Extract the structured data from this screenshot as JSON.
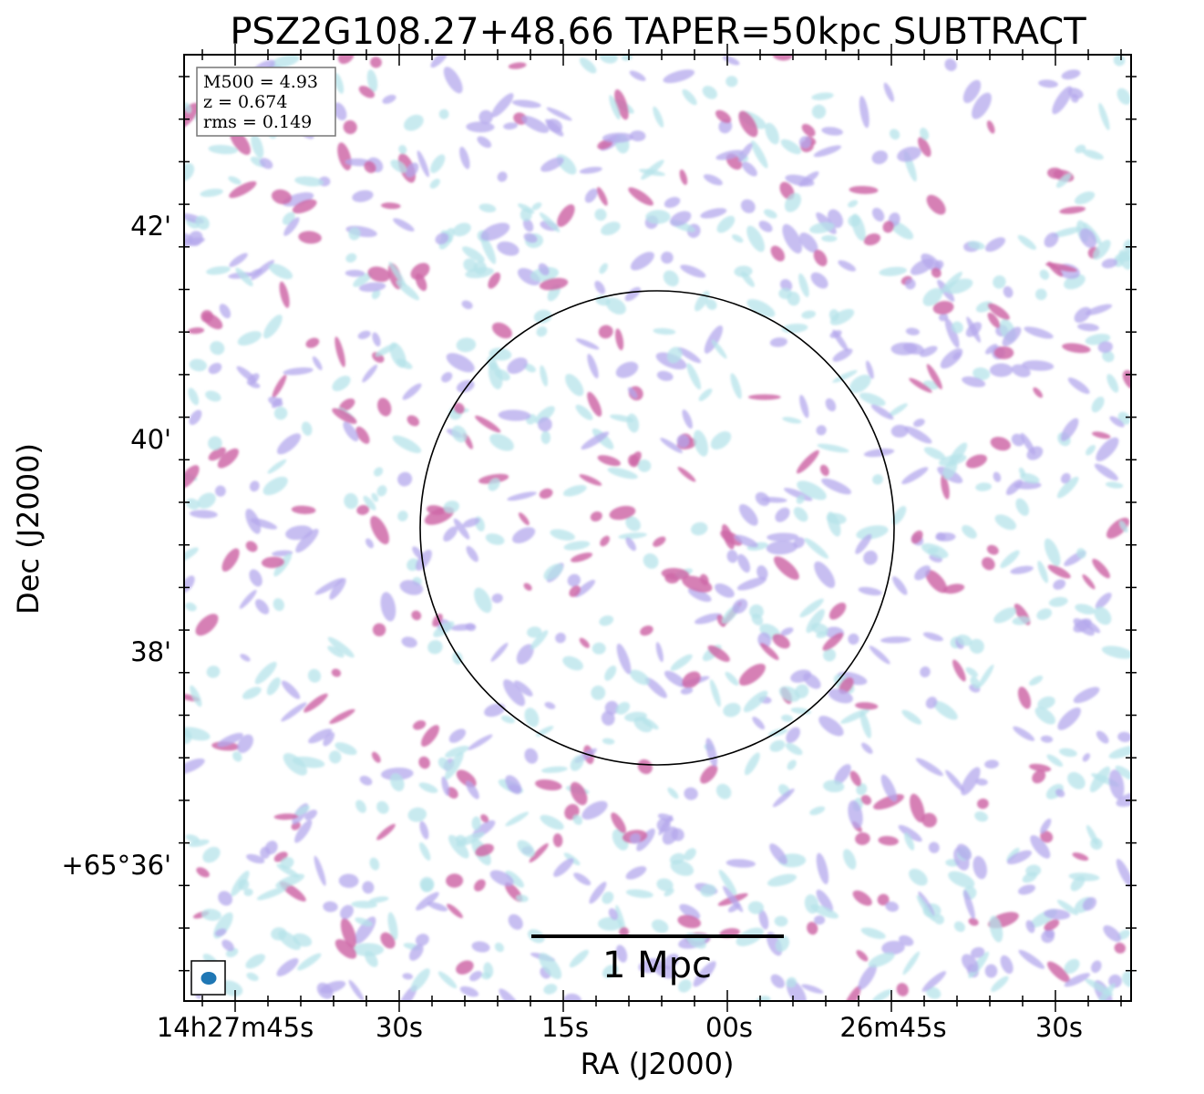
{
  "title": "PSZ2G108.27+48.66 TAPER=50kpc SUBTRACT",
  "xlabel": "RA (J2000)",
  "ylabel": "Dec (J2000)",
  "x_ticks": [
    "14h27m45s",
    "30s",
    "15s",
    "00s",
    "26m45s",
    "30s"
  ],
  "y_ticks": [
    "42'",
    "40'",
    "38'",
    "+65°36'"
  ],
  "info_box": {
    "m500": "M500 = 4.93",
    "z": "z = 0.674",
    "rms": "rms = 0.149"
  },
  "scale_bar": {
    "label": "1 Mpc"
  },
  "colors": {
    "low": "#b6e3ea",
    "mid": "#b4a8ec",
    "high": "#cf6aa8",
    "frame": "#000000"
  }
}
